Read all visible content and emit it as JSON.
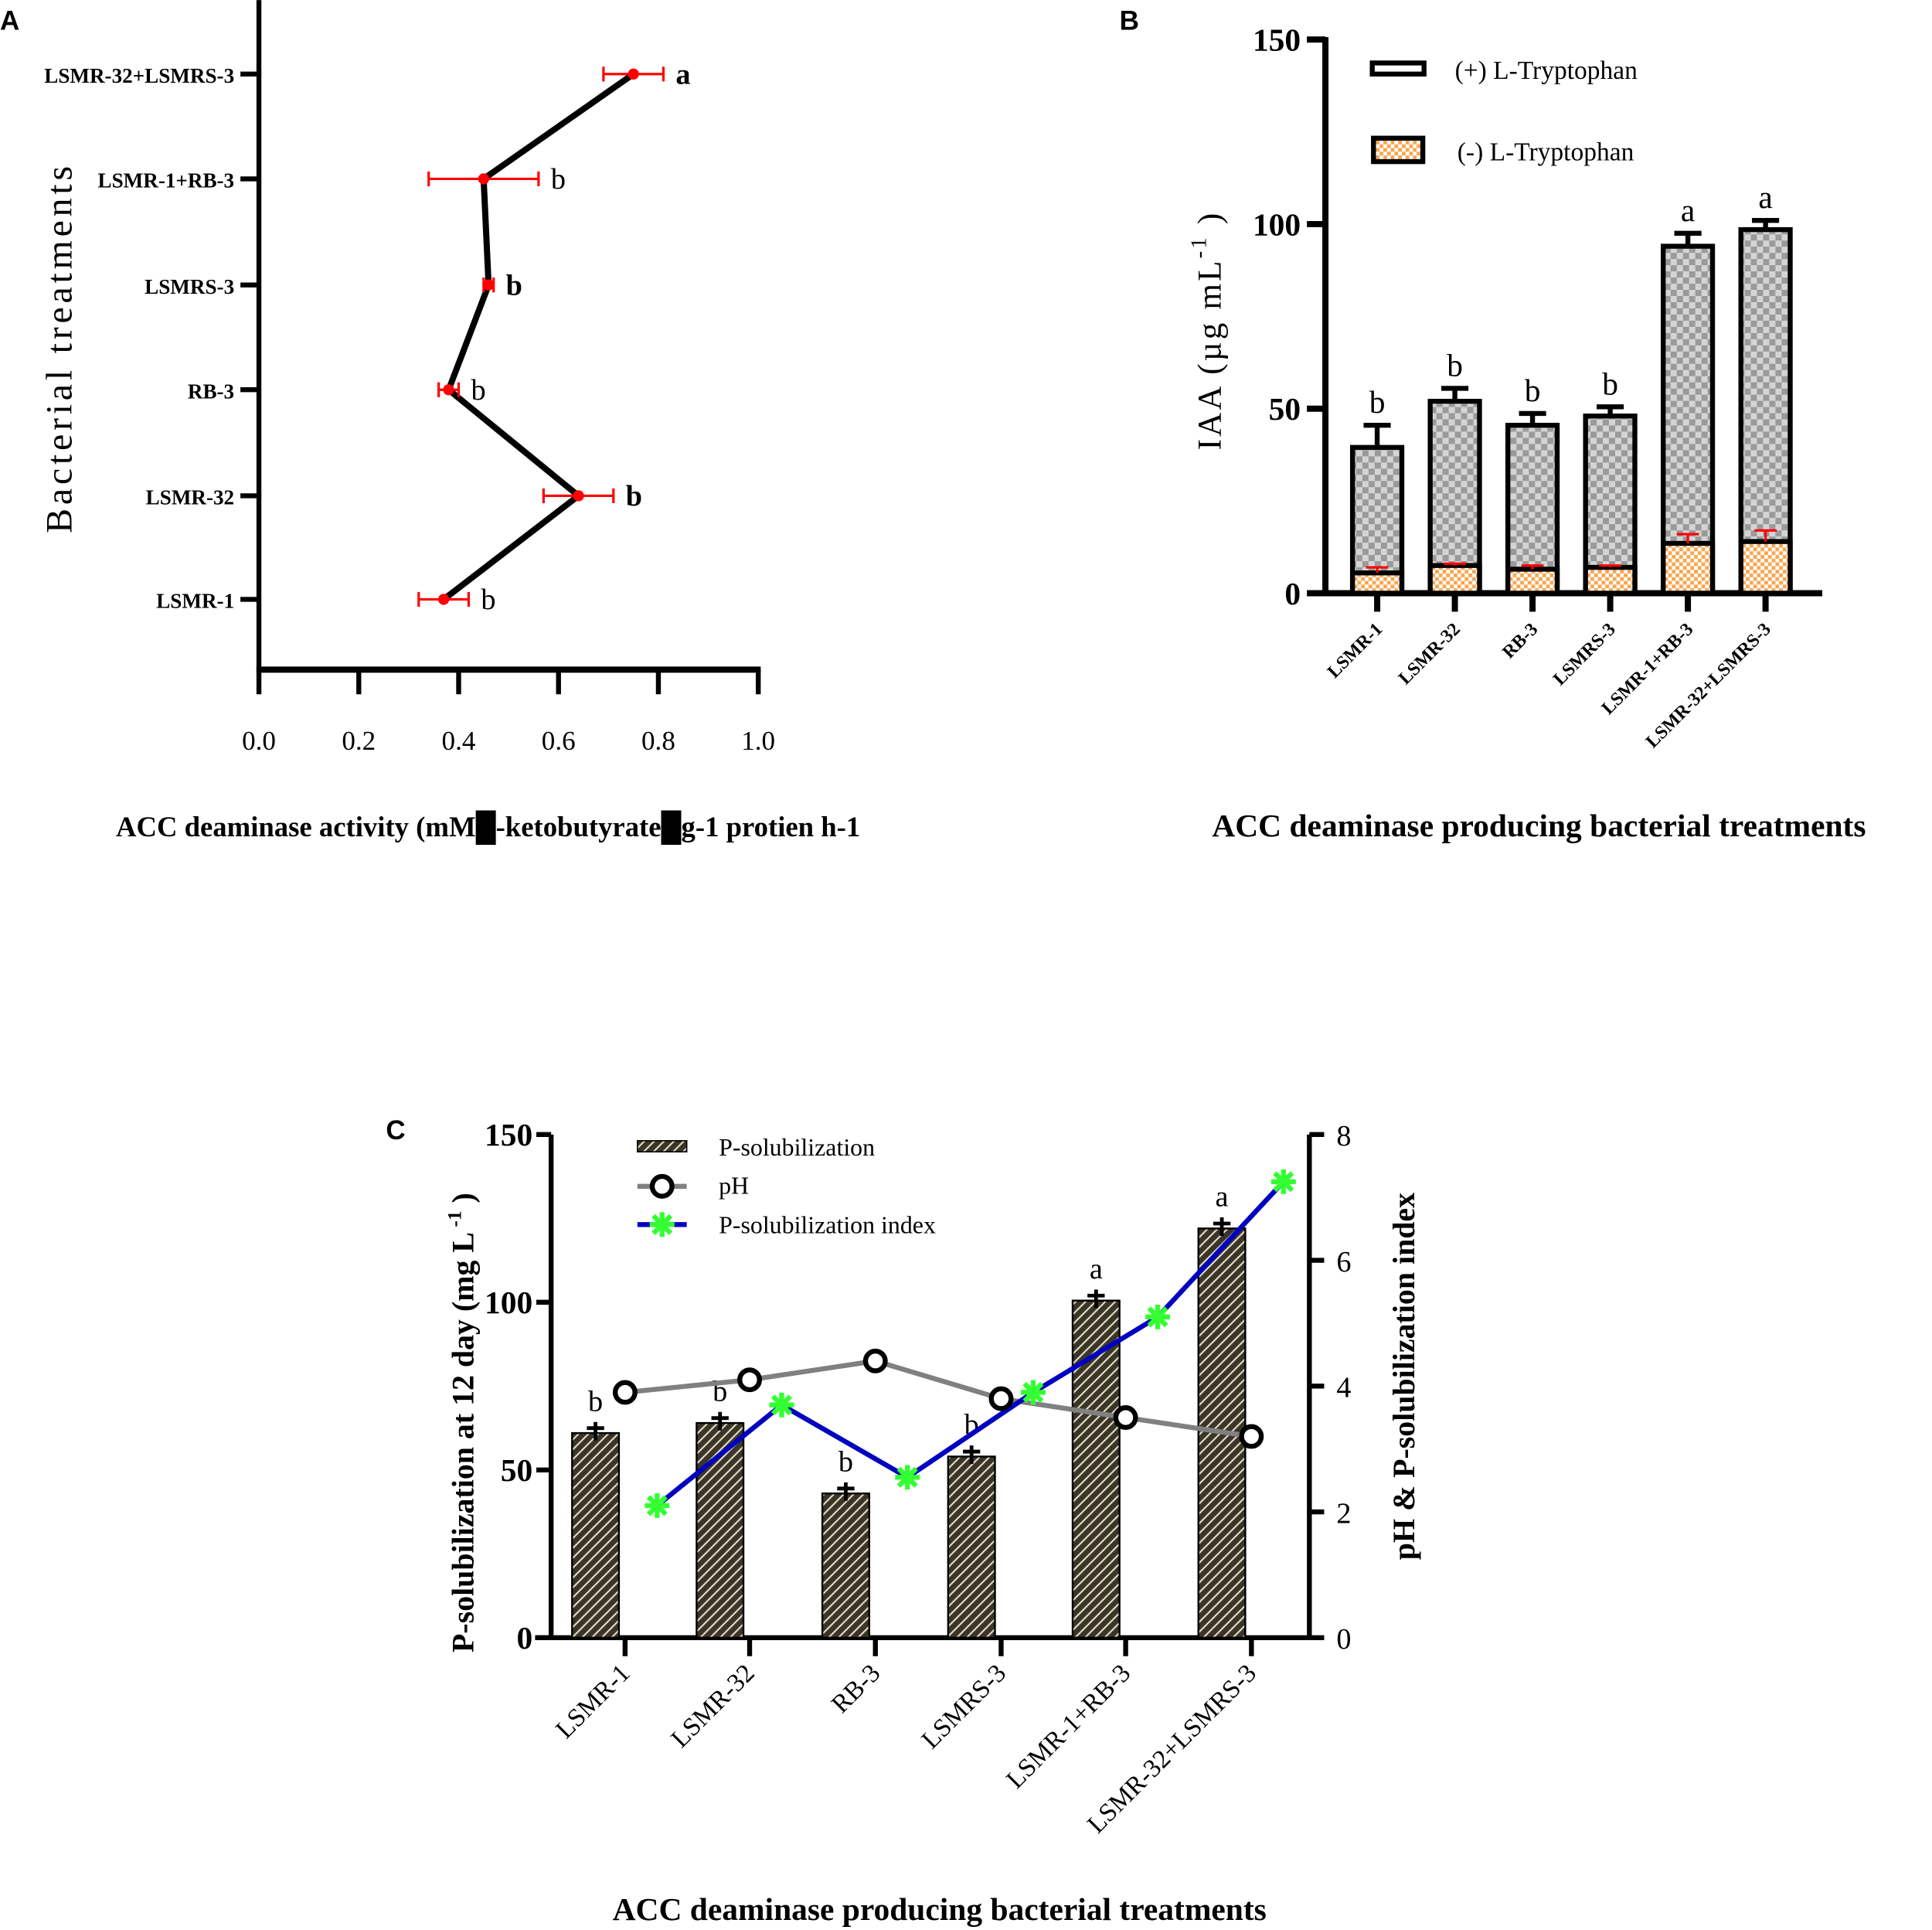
{
  "chart_data": [
    {
      "panel": "A",
      "type": "line",
      "orientation": "horizontal",
      "categories": [
        "LSMR-1",
        "LSMR-32",
        "RB-3",
        "LSMRS-3",
        "LSMR-1+RB-3",
        "LSMR-32+LSMRS-3"
      ],
      "values": [
        0.37,
        0.64,
        0.38,
        0.46,
        0.45,
        0.75
      ],
      "errors": [
        0.05,
        0.07,
        0.02,
        0.01,
        0.11,
        0.06
      ],
      "letters": [
        "b",
        "b",
        "b",
        "b",
        "b",
        "a"
      ],
      "xlabel": "ACC deaminase activity (mM█-ketobutyrate█g-1 protien h-1",
      "ylabel": "Bacterial treatments",
      "xlim": [
        0,
        1.0
      ],
      "xticks": [
        "0.0",
        "0.2",
        "0.4",
        "0.6",
        "0.8",
        "1.0"
      ],
      "colors": {
        "line": "#000000",
        "marker": "#ff0000"
      }
    },
    {
      "panel": "B",
      "type": "bar",
      "categories": [
        "LSMR-1",
        "LSMR-32",
        "RB-3",
        "LSMRS-3",
        "LSMR-1+RB-3",
        "LSMR-32+LSMRS-3"
      ],
      "series": [
        {
          "name": "(+) L-Tryptophan",
          "values": [
            39.5,
            52,
            45.5,
            48,
            94,
            98.5
          ],
          "errors": [
            6,
            3.5,
            3.2,
            2.5,
            3.5,
            2.5
          ]
        },
        {
          "name": "(-) L-Tryptophan",
          "values": [
            5.5,
            7.5,
            6.5,
            7,
            13.5,
            14
          ],
          "errors": [
            1.5,
            0.5,
            1,
            0.5,
            2.5,
            3
          ]
        }
      ],
      "letters": [
        "b",
        "b",
        "b",
        "b",
        "a",
        "a"
      ],
      "ylabel": "IAA (µg mL-1)",
      "ylabel_main": "IAA (µg mL",
      "ylabel_sup": "-1",
      "ylabel_close": ")",
      "xlabel": "ACC deaminase producing bacterial treatments",
      "ylim": [
        0,
        150
      ],
      "yticks": [
        "0",
        "50",
        "100",
        "150"
      ],
      "legend": "top-left",
      "colors": {
        "plus": "#c8c8c8",
        "minus": "#f7a650",
        "error_minus": "#ff0000"
      }
    },
    {
      "panel": "C",
      "type": "bar",
      "categories": [
        "LSMR-1",
        "LSMR-32",
        "RB-3",
        "LSMRS-3",
        "LSMR-1+RB-3",
        "LSMR-32+LSMRS-3"
      ],
      "series": [
        {
          "name": "P-solubilization",
          "type": "bar",
          "axis": "left",
          "values": [
            61,
            64,
            43,
            54,
            100.5,
            122
          ]
        },
        {
          "name": "pH",
          "type": "line",
          "axis": "right",
          "values": [
            3.9,
            4.1,
            4.4,
            3.8,
            3.5,
            3.2
          ]
        },
        {
          "name": "P-solubilization index",
          "type": "line",
          "axis": "right",
          "values": [
            2.1,
            3.7,
            2.55,
            3.9,
            5.1,
            7.25
          ]
        }
      ],
      "letters": [
        "b",
        "b",
        "b",
        "b",
        "a",
        "a"
      ],
      "ylabel": "P-solubilization at 12 day (mg L-1)",
      "ylabel_main": "P-solubilization at 12 day (mg L",
      "ylabel_sup": "-1",
      "ylabel_close": ")",
      "y2label": "pH & P-solubilization index",
      "xlabel": "ACC deaminase producing bacterial treatments",
      "ylim": [
        0,
        150
      ],
      "y2lim": [
        0,
        8
      ],
      "yticks": [
        "0",
        "50",
        "100",
        "150"
      ],
      "y2ticks": [
        "0",
        "2",
        "4",
        "6",
        "8"
      ],
      "legend": "top-left",
      "colors": {
        "bar": "#3a3528",
        "ph": "#808080",
        "index": "#0000c0",
        "index_marker": "#33ff33"
      }
    }
  ],
  "panel_labels": [
    "A",
    "B",
    "C"
  ]
}
